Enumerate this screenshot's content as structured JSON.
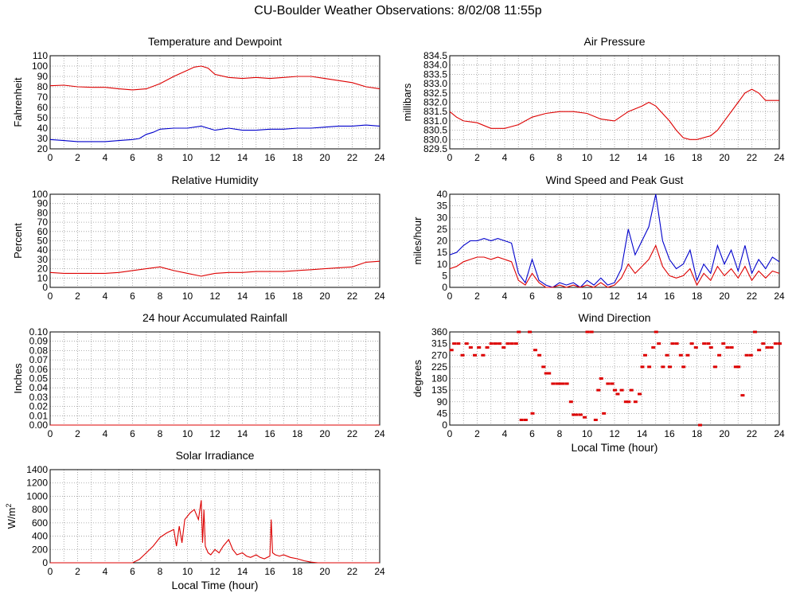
{
  "page_title": "CU-Boulder Weather Observations: 8/02/08 11:55p",
  "colors": {
    "series_red": "#dd0000",
    "series_blue": "#0000cc",
    "grid": "#999999",
    "axis": "#000000"
  },
  "chart_data": [
    {
      "id": "temperature",
      "type": "line",
      "title": "Temperature and Dewpoint",
      "ylabel": "Fahrenheit",
      "xlabel": "",
      "xlim": [
        0,
        24
      ],
      "ylim": [
        20,
        110
      ],
      "x_ticks": [
        "0",
        "2",
        "4",
        "6",
        "8",
        "10",
        "12",
        "14",
        "16",
        "18",
        "20",
        "22",
        "24"
      ],
      "y_ticks": [
        "20",
        "30",
        "40",
        "50",
        "60",
        "70",
        "80",
        "90",
        "100",
        "110"
      ],
      "grid": true,
      "series": [
        {
          "color": "#dd0000",
          "x": [
            0,
            1,
            2,
            3,
            4,
            5,
            6,
            7,
            8,
            9,
            10,
            10.5,
            11,
            11.5,
            12,
            13,
            14,
            15,
            16,
            17,
            18,
            19,
            20,
            21,
            22,
            23,
            24
          ],
          "y": [
            81,
            81.5,
            80,
            79.5,
            79.5,
            78,
            77,
            78,
            83,
            90,
            96,
            99,
            100,
            98,
            92,
            89,
            88,
            89,
            88,
            89,
            90,
            90,
            88,
            86,
            84,
            80,
            78
          ]
        },
        {
          "color": "#0000cc",
          "x": [
            0,
            1,
            2,
            3,
            4,
            5,
            6,
            6.5,
            7,
            7.5,
            8,
            9,
            10,
            11,
            12,
            13,
            14,
            15,
            16,
            17,
            18,
            19,
            20,
            21,
            22,
            23,
            24
          ],
          "y": [
            29,
            28,
            27,
            27,
            27,
            28,
            29,
            30,
            34,
            36,
            39,
            40,
            40,
            42,
            38,
            40,
            38,
            38,
            39,
            39,
            40,
            40,
            41,
            42,
            42,
            43,
            42
          ]
        }
      ]
    },
    {
      "id": "pressure",
      "type": "line",
      "title": "Air Pressure",
      "ylabel": "millibars",
      "xlabel": "",
      "xlim": [
        0,
        24
      ],
      "ylim": [
        829.5,
        834.5
      ],
      "x_ticks": [
        "0",
        "2",
        "4",
        "6",
        "8",
        "10",
        "12",
        "14",
        "16",
        "18",
        "20",
        "22",
        "24"
      ],
      "y_ticks": [
        "829.5",
        "830.0",
        "830.5",
        "831.0",
        "831.5",
        "832.0",
        "832.5",
        "833.0",
        "833.5",
        "834.0",
        "834.5"
      ],
      "grid": true,
      "series": [
        {
          "color": "#dd0000",
          "x": [
            0,
            0.5,
            1,
            2,
            3,
            4,
            5,
            6,
            7,
            8,
            9,
            10,
            11,
            12,
            13,
            14,
            14.5,
            15,
            16,
            16.5,
            17,
            17.5,
            18,
            19,
            19.5,
            20,
            21,
            21.5,
            22,
            22.5,
            23,
            24
          ],
          "y": [
            831.5,
            831.2,
            831.0,
            830.9,
            830.6,
            830.6,
            830.8,
            831.2,
            831.4,
            831.5,
            831.5,
            831.4,
            831.1,
            831.0,
            831.5,
            831.8,
            832.0,
            831.8,
            831.0,
            830.5,
            830.1,
            830.0,
            830.0,
            830.2,
            830.5,
            831.0,
            832.0,
            832.5,
            832.7,
            832.5,
            832.1,
            832.1
          ]
        }
      ]
    },
    {
      "id": "humidity",
      "type": "line",
      "title": "Relative Humidity",
      "ylabel": "Percent",
      "xlabel": "",
      "xlim": [
        0,
        24
      ],
      "ylim": [
        0,
        100
      ],
      "x_ticks": [
        "0",
        "2",
        "4",
        "6",
        "8",
        "10",
        "12",
        "14",
        "16",
        "18",
        "20",
        "22",
        "24"
      ],
      "y_ticks": [
        "0",
        "10",
        "20",
        "30",
        "40",
        "50",
        "60",
        "70",
        "80",
        "90",
        "100"
      ],
      "grid": true,
      "series": [
        {
          "color": "#dd0000",
          "x": [
            0,
            1,
            2,
            3,
            4,
            5,
            6,
            7,
            8,
            9,
            10,
            11,
            12,
            13,
            14,
            15,
            16,
            17,
            18,
            19,
            20,
            21,
            22,
            23,
            24
          ],
          "y": [
            16,
            15,
            15,
            15,
            15,
            16,
            18,
            20,
            22,
            18,
            15,
            12,
            15,
            16,
            16,
            17,
            17,
            17,
            18,
            19,
            20,
            21,
            22,
            27,
            28
          ]
        }
      ]
    },
    {
      "id": "wind-speed",
      "type": "line",
      "title": "Wind Speed and Peak Gust",
      "ylabel": "miles/hour",
      "xlabel": "",
      "xlim": [
        0,
        24
      ],
      "ylim": [
        0,
        40
      ],
      "x_ticks": [
        "0",
        "2",
        "4",
        "6",
        "8",
        "10",
        "12",
        "14",
        "16",
        "18",
        "20",
        "22",
        "24"
      ],
      "y_ticks": [
        "0",
        "5",
        "10",
        "15",
        "20",
        "25",
        "30",
        "35",
        "40"
      ],
      "grid": true,
      "series": [
        {
          "color": "#0000cc",
          "x": [
            0,
            0.5,
            1,
            1.5,
            2,
            2.5,
            3,
            3.5,
            4,
            4.5,
            5,
            5.5,
            6,
            6.5,
            7,
            7.5,
            8,
            8.5,
            9,
            9.5,
            10,
            10.5,
            11,
            11.5,
            12,
            12.5,
            13,
            13.5,
            14,
            14.5,
            15,
            15.5,
            16,
            16.5,
            17,
            17.5,
            18,
            18.5,
            19,
            19.5,
            20,
            20.5,
            21,
            21.5,
            22,
            22.5,
            23,
            23.5,
            24
          ],
          "y": [
            14,
            15,
            18,
            20,
            20,
            21,
            20,
            21,
            20,
            19,
            6,
            2,
            12,
            3,
            1,
            0,
            2,
            1,
            2,
            0,
            3,
            1,
            4,
            1,
            2,
            8,
            25,
            14,
            20,
            26,
            40,
            20,
            12,
            8,
            10,
            16,
            3,
            10,
            6,
            18,
            10,
            16,
            7,
            18,
            6,
            12,
            8,
            13,
            11
          ]
        },
        {
          "color": "#dd0000",
          "x": [
            0,
            0.5,
            1,
            1.5,
            2,
            2.5,
            3,
            3.5,
            4,
            4.5,
            5,
            5.5,
            6,
            6.5,
            7,
            7.5,
            8,
            8.5,
            9,
            9.5,
            10,
            10.5,
            11,
            11.5,
            12,
            12.5,
            13,
            13.5,
            14,
            14.5,
            15,
            15.5,
            16,
            16.5,
            17,
            17.5,
            18,
            18.5,
            19,
            19.5,
            20,
            20.5,
            21,
            21.5,
            22,
            22.5,
            23,
            23.5,
            24
          ],
          "y": [
            8,
            9,
            11,
            12,
            13,
            13,
            12,
            13,
            12,
            11,
            3,
            1,
            6,
            2,
            0,
            0,
            1,
            0,
            1,
            0,
            1,
            0,
            2,
            0,
            1,
            4,
            10,
            6,
            9,
            12,
            18,
            9,
            5,
            4,
            5,
            8,
            1,
            6,
            3,
            9,
            5,
            8,
            4,
            9,
            3,
            7,
            4,
            7,
            6
          ]
        }
      ]
    },
    {
      "id": "rainfall",
      "type": "line",
      "title": "24 hour Accumulated Rainfall",
      "ylabel": "Inches",
      "xlabel": "",
      "xlim": [
        0,
        24
      ],
      "ylim": [
        0,
        0.1
      ],
      "x_ticks": [
        "0",
        "2",
        "4",
        "6",
        "8",
        "10",
        "12",
        "14",
        "16",
        "18",
        "20",
        "22",
        "24"
      ],
      "y_ticks": [
        "0.00",
        "0.01",
        "0.02",
        "0.03",
        "0.04",
        "0.05",
        "0.06",
        "0.07",
        "0.08",
        "0.09",
        "0.10"
      ],
      "grid": true,
      "series": [
        {
          "color": "#dd0000",
          "x": [
            0,
            24
          ],
          "y": [
            0,
            0
          ]
        }
      ]
    },
    {
      "id": "wind-direction",
      "type": "scatter",
      "title": "Wind Direction",
      "ylabel": "degrees",
      "xlabel": "Local Time (hour)",
      "xlim": [
        0,
        24
      ],
      "ylim": [
        0,
        360
      ],
      "x_ticks": [
        "0",
        "2",
        "4",
        "6",
        "8",
        "10",
        "12",
        "14",
        "16",
        "18",
        "20",
        "22",
        "24"
      ],
      "y_ticks": [
        "0",
        "45",
        "90",
        "135",
        "180",
        "225",
        "270",
        "315",
        "360"
      ],
      "grid": true,
      "series": [
        {
          "color": "#dd0000",
          "x": [
            0.1,
            0.3,
            0.6,
            0.9,
            1.2,
            1.5,
            1.8,
            2.1,
            2.4,
            2.7,
            3.0,
            3.3,
            3.6,
            3.9,
            4.2,
            4.5,
            4.8,
            5.0,
            5.2,
            5.5,
            5.8,
            6.0,
            6.2,
            6.5,
            6.8,
            7.0,
            7.2,
            7.5,
            7.8,
            8.0,
            8.2,
            8.5,
            8.8,
            9.0,
            9.2,
            9.5,
            9.8,
            10.0,
            10.3,
            10.6,
            10.8,
            11.0,
            11.2,
            11.5,
            11.8,
            12.0,
            12.2,
            12.5,
            12.8,
            13.0,
            13.2,
            13.5,
            13.8,
            14.0,
            14.2,
            14.5,
            14.8,
            15.0,
            15.2,
            15.5,
            15.8,
            16.0,
            16.2,
            16.5,
            16.8,
            17.0,
            17.3,
            17.6,
            17.9,
            18.2,
            18.5,
            18.8,
            19.0,
            19.3,
            19.6,
            19.9,
            20.2,
            20.5,
            20.8,
            21.0,
            21.3,
            21.6,
            21.9,
            22.2,
            22.5,
            22.8,
            23.1,
            23.4,
            23.7,
            24.0
          ],
          "y": [
            290,
            315,
            315,
            270,
            315,
            300,
            270,
            300,
            270,
            300,
            315,
            315,
            315,
            300,
            315,
            315,
            315,
            360,
            20,
            20,
            360,
            45,
            290,
            270,
            225,
            200,
            200,
            160,
            160,
            160,
            160,
            160,
            90,
            40,
            40,
            40,
            30,
            360,
            360,
            20,
            135,
            180,
            45,
            160,
            160,
            135,
            120,
            135,
            90,
            90,
            135,
            90,
            120,
            225,
            270,
            225,
            300,
            360,
            315,
            225,
            270,
            225,
            315,
            315,
            270,
            225,
            270,
            315,
            300,
            0,
            315,
            315,
            300,
            225,
            270,
            315,
            300,
            300,
            225,
            225,
            115,
            270,
            270,
            360,
            290,
            315,
            300,
            300,
            315,
            315
          ]
        }
      ]
    },
    {
      "id": "solar",
      "type": "line",
      "title": "Solar Irradiance",
      "ylabel": "W/m",
      "ylabel_superscript": "2",
      "xlabel": "Local Time (hour)",
      "xlim": [
        0,
        24
      ],
      "ylim": [
        0,
        1400
      ],
      "x_ticks": [
        "0",
        "2",
        "4",
        "6",
        "8",
        "10",
        "12",
        "14",
        "16",
        "18",
        "20",
        "22",
        "24"
      ],
      "y_ticks": [
        "0",
        "200",
        "400",
        "600",
        "800",
        "1000",
        "1200",
        "1400"
      ],
      "grid": true,
      "series": [
        {
          "color": "#dd0000",
          "x": [
            0,
            6,
            6.5,
            7,
            7.5,
            8,
            8.5,
            9,
            9.2,
            9.4,
            9.6,
            9.8,
            10,
            10.2,
            10.5,
            10.8,
            11,
            11.1,
            11.2,
            11.3,
            11.5,
            11.7,
            12,
            12.3,
            12.6,
            13,
            13.3,
            13.6,
            14,
            14.3,
            14.6,
            15,
            15.3,
            15.6,
            16,
            16.1,
            16.2,
            16.4,
            16.7,
            17,
            17.5,
            18,
            18.5,
            19,
            19.5,
            20,
            24
          ],
          "y": [
            0,
            0,
            50,
            150,
            250,
            380,
            450,
            500,
            250,
            550,
            300,
            650,
            700,
            750,
            800,
            650,
            940,
            300,
            800,
            250,
            150,
            120,
            200,
            150,
            250,
            350,
            200,
            120,
            150,
            100,
            80,
            120,
            80,
            60,
            100,
            650,
            150,
            120,
            100,
            120,
            80,
            60,
            30,
            10,
            0,
            0,
            0
          ]
        }
      ]
    }
  ]
}
